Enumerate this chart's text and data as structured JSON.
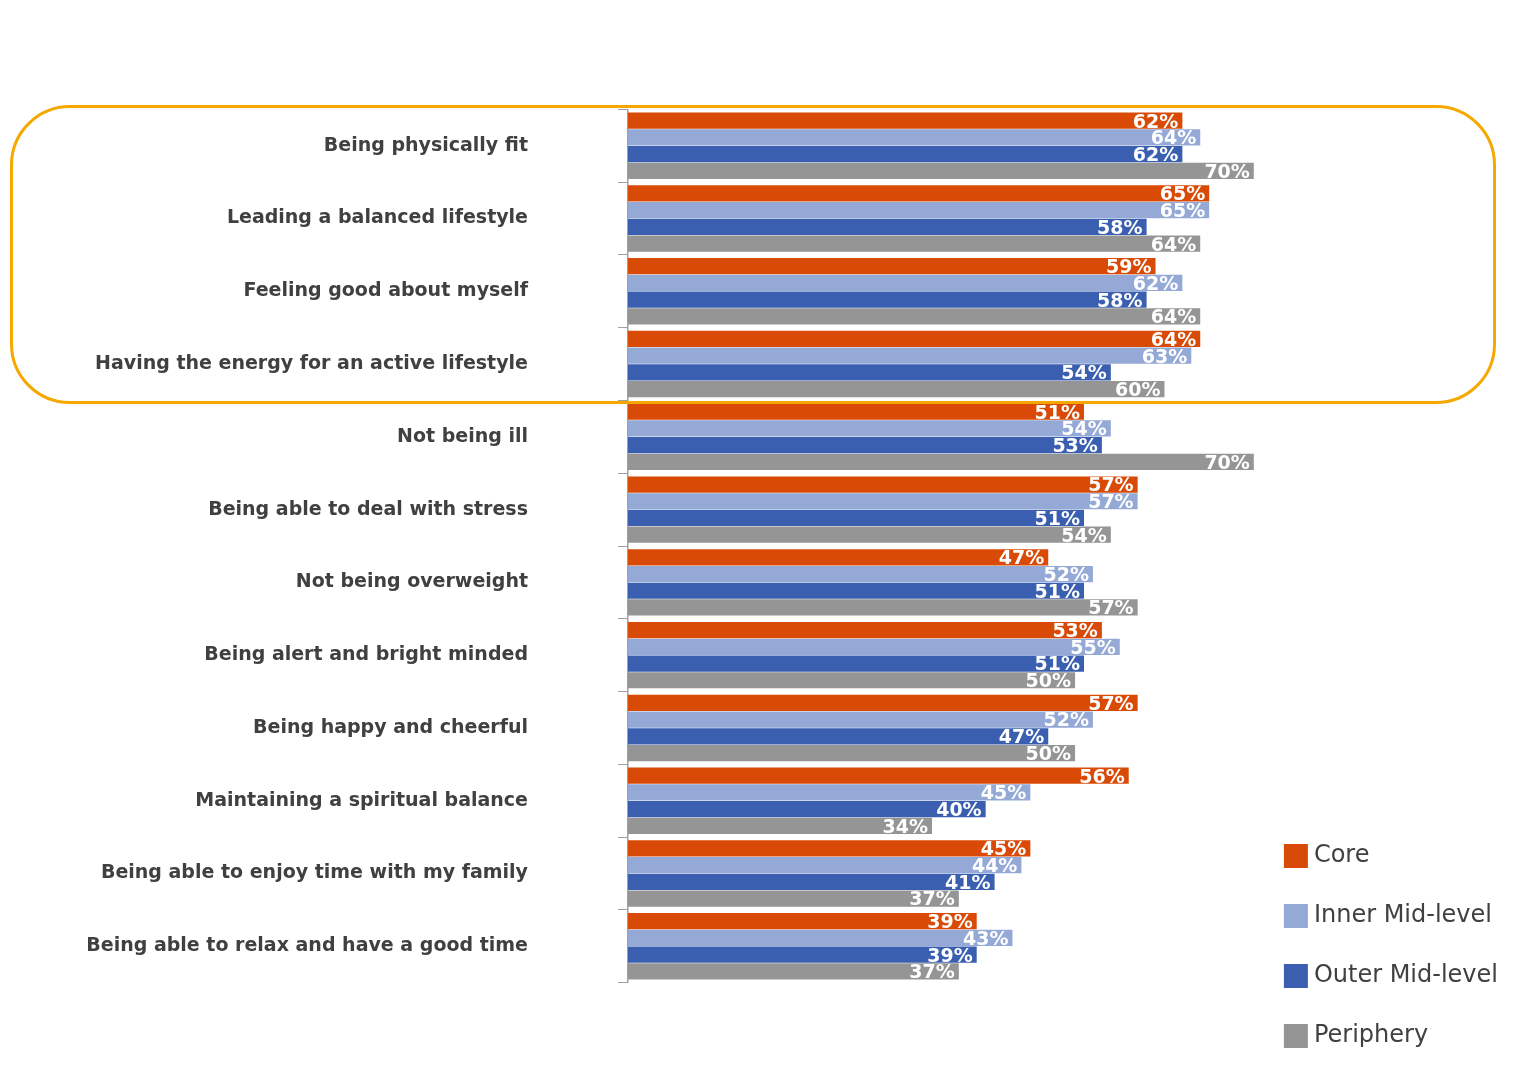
{
  "chart_data": {
    "type": "bar",
    "orientation": "horizontal",
    "legend": "right",
    "categories": [
      "Being physically fit",
      "Leading a balanced lifestyle",
      "Feeling good about myself",
      "Having the energy for an active lifestyle",
      "Not being ill",
      "Being able to deal with stress",
      "Not being overweight",
      "Being alert and bright minded",
      "Being happy and cheerful",
      "Maintaining a spiritual balance",
      "Being able to enjoy time with my family",
      "Being able to relax and have a good time"
    ],
    "series": [
      {
        "name": "Core",
        "color": "#d84a05",
        "values": [
          62,
          65,
          59,
          64,
          51,
          57,
          47,
          53,
          57,
          56,
          45,
          39
        ],
        "value_labels": [
          "62%",
          "65%",
          "59%",
          "64%",
          "51%",
          "57%",
          "47%",
          "53%",
          "57%",
          "56%",
          "45%",
          "39%"
        ]
      },
      {
        "name": "Inner Mid-level",
        "color": "#95a9d6",
        "values": [
          64,
          65,
          62,
          63,
          54,
          57,
          52,
          55,
          52,
          45,
          44,
          43
        ],
        "value_labels": [
          "64%",
          "65%",
          "62%",
          "63%",
          "54%",
          "57%",
          "52%",
          "55%",
          "52%",
          "45%",
          "44%",
          "43%"
        ]
      },
      {
        "name": "Outer Mid-level",
        "color": "#3a5fb0",
        "values": [
          62,
          58,
          58,
          54,
          53,
          51,
          51,
          51,
          47,
          40,
          41,
          39
        ],
        "value_labels": [
          "62%",
          "58%",
          "58%",
          "54%",
          "53%",
          "51%",
          "51%",
          "51%",
          "47%",
          "40%",
          "41%",
          "39%"
        ]
      },
      {
        "name": "Periphery",
        "color": "#959595",
        "values": [
          70,
          64,
          64,
          60,
          70,
          54,
          57,
          50,
          50,
          34,
          37,
          37
        ],
        "value_labels": [
          "70%",
          "64%",
          "64%",
          "60%",
          "70%",
          "54%",
          "57%",
          "50%",
          "50%",
          "34%",
          "37%",
          "37%"
        ]
      }
    ]
  }
}
